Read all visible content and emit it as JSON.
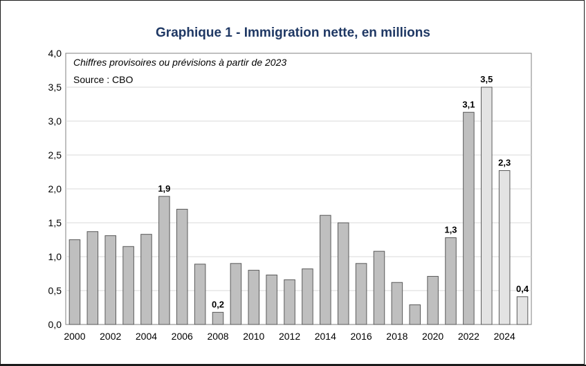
{
  "chart_data": {
    "type": "bar",
    "title": "Graphique 1 - Immigration nette, en millions",
    "notes": [
      "Chiffres provisoires ou prévisions à partir de 2023",
      "Source : CBO"
    ],
    "x": [
      2000,
      2001,
      2002,
      2003,
      2004,
      2005,
      2006,
      2007,
      2008,
      2009,
      2010,
      2011,
      2012,
      2013,
      2014,
      2015,
      2016,
      2017,
      2018,
      2019,
      2020,
      2021,
      2022,
      2023,
      2024,
      2025
    ],
    "values": [
      1.25,
      1.37,
      1.31,
      1.15,
      1.33,
      1.89,
      1.7,
      0.89,
      0.18,
      0.9,
      0.8,
      0.73,
      0.66,
      0.82,
      1.61,
      1.5,
      0.9,
      1.08,
      0.62,
      0.29,
      0.71,
      1.28,
      3.13,
      3.5,
      2.27,
      0.41
    ],
    "provisional_from": 2023,
    "x_tick_labels": [
      "2000",
      "2002",
      "2004",
      "2006",
      "2008",
      "2010",
      "2012",
      "2014",
      "2016",
      "2018",
      "2020",
      "2022",
      "2024"
    ],
    "y_tick_labels": [
      "0,0",
      "0,5",
      "1,0",
      "1,5",
      "2,0",
      "2,5",
      "3,0",
      "3,5",
      "4,0"
    ],
    "data_labels": [
      {
        "x": 2005,
        "text": "1,9"
      },
      {
        "x": 2008,
        "text": "0,2"
      },
      {
        "x": 2021,
        "text": "1,3"
      },
      {
        "x": 2022,
        "text": "3,1"
      },
      {
        "x": 2023,
        "text": "3,5"
      },
      {
        "x": 2024,
        "text": "2,3"
      },
      {
        "x": 2025,
        "text": "0,4"
      }
    ],
    "ylim": [
      0,
      4
    ],
    "xlabel": "",
    "ylabel": "",
    "grid": true,
    "colors": {
      "actual": "#bfbfbf",
      "provisional": "#e3e3e3",
      "edge": "#595959",
      "grid": "#d9d9d9"
    }
  }
}
